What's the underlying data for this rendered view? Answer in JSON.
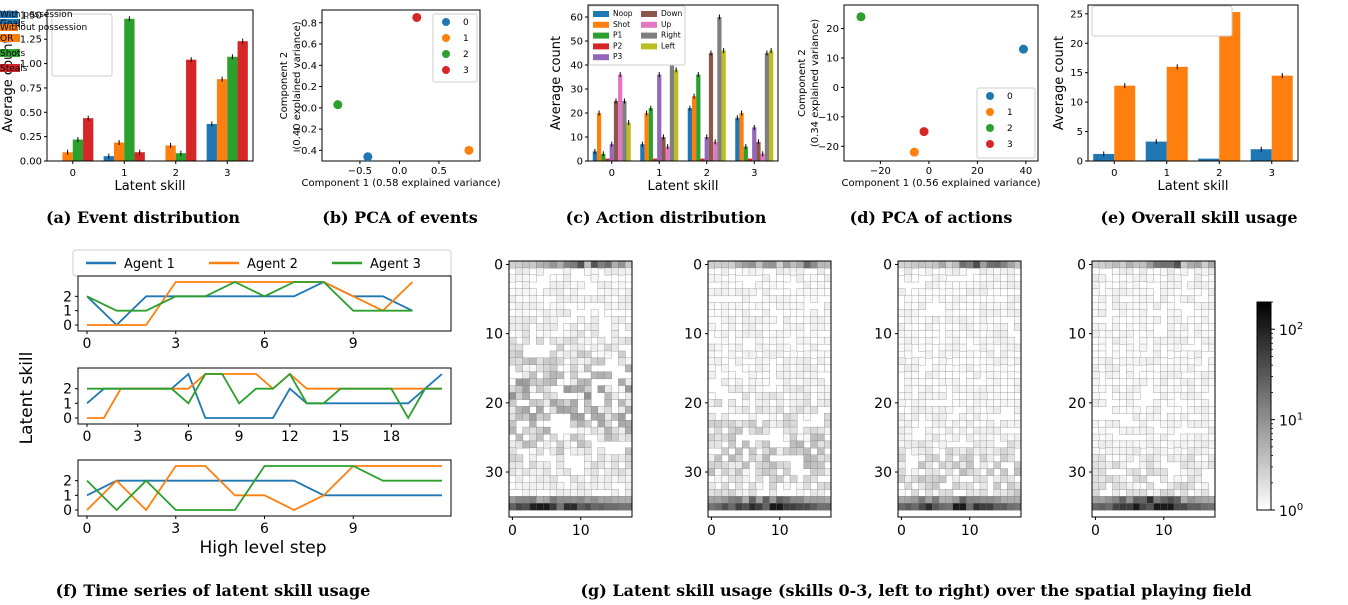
{
  "captions": {
    "a": "(a) Event distribution",
    "b": "(b) PCA of events",
    "c": "(c) Action distribution",
    "d": "(d) PCA of actions",
    "e": "(e) Overall skill usage",
    "f": "(f) Time series of latent skill usage",
    "g": "(g) Latent skill usage (skills 0-3, left to right) over the spatial playing field"
  },
  "colors": {
    "blue": "#1f77b4",
    "orange": "#ff7f0e",
    "green": "#2ca02c",
    "red": "#d62728",
    "purple": "#9467bd",
    "brown": "#8c564b",
    "pink": "#e377c2",
    "gray": "#7f7f7f",
    "olive": "#bcbd22"
  },
  "chart_data": [
    {
      "id": "a",
      "type": "bar",
      "xlabel": "Latent skill",
      "ylabel": "Average count",
      "categories": [
        "0",
        "1",
        "2",
        "3"
      ],
      "yticks": [
        "0.00",
        "0.25",
        "0.50",
        "0.75",
        "1.00",
        "1.25",
        "1.50"
      ],
      "ylim": [
        0,
        1.55
      ],
      "legend": "top-left",
      "series": [
        {
          "name": "Goals",
          "color": "#1f77b4",
          "values": [
            0.0,
            0.05,
            0.0,
            0.38
          ]
        },
        {
          "name": "OR",
          "color": "#ff7f0e",
          "values": [
            0.09,
            0.19,
            0.16,
            0.84
          ]
        },
        {
          "name": "Shots",
          "color": "#2ca02c",
          "values": [
            0.22,
            1.46,
            0.08,
            1.07
          ]
        },
        {
          "name": "Steals",
          "color": "#d62728",
          "values": [
            0.44,
            0.09,
            1.04,
            1.23
          ]
        }
      ]
    },
    {
      "id": "b",
      "type": "scatter",
      "xlabel": "Component 1 (0.58 explained variance)",
      "ylabel": "Component 2",
      "ylabel2": "(0.40 explained variance)",
      "xticks": [
        "−0.5",
        "0.0",
        "0.5"
      ],
      "yticks": [
        "−0.4",
        "−0.2",
        "0.0",
        "0.2",
        "0.4",
        "0.6",
        "0.8"
      ],
      "legend": "top-right",
      "points": [
        {
          "name": "0",
          "color": "#1f77b4",
          "x": -0.4,
          "y": -0.46
        },
        {
          "name": "1",
          "color": "#ff7f0e",
          "x": 0.88,
          "y": -0.4
        },
        {
          "name": "2",
          "color": "#2ca02c",
          "x": -0.78,
          "y": 0.03
        },
        {
          "name": "3",
          "color": "#d62728",
          "x": 0.22,
          "y": 0.85
        }
      ]
    },
    {
      "id": "c",
      "type": "bar",
      "xlabel": "Latent skill",
      "ylabel": "Average count",
      "categories": [
        "0",
        "1",
        "2",
        "3"
      ],
      "yticks": [
        "0",
        "10",
        "20",
        "30",
        "40",
        "50",
        "60"
      ],
      "ylim": [
        0,
        65
      ],
      "legend": "top-left",
      "series": [
        {
          "name": "Noop",
          "color": "#1f77b4",
          "values": [
            4,
            7,
            22,
            18
          ]
        },
        {
          "name": "Shot",
          "color": "#ff7f0e",
          "values": [
            20,
            20,
            27,
            20
          ]
        },
        {
          "name": "P1",
          "color": "#2ca02c",
          "values": [
            3,
            22,
            36,
            6
          ]
        },
        {
          "name": "P2",
          "color": "#d62728",
          "values": [
            1,
            1,
            1,
            1
          ]
        },
        {
          "name": "P3",
          "color": "#9467bd",
          "values": [
            7,
            36,
            10,
            14
          ]
        },
        {
          "name": "Down",
          "color": "#8c564b",
          "values": [
            25,
            10,
            45,
            8
          ]
        },
        {
          "name": "Up",
          "color": "#e377c2",
          "values": [
            36,
            6,
            8,
            3
          ]
        },
        {
          "name": "Right",
          "color": "#7f7f7f",
          "values": [
            25,
            43,
            60,
            45
          ]
        },
        {
          "name": "Left",
          "color": "#bcbd22",
          "values": [
            16,
            38,
            46,
            46
          ]
        }
      ]
    },
    {
      "id": "d",
      "type": "scatter",
      "xlabel": "Component 1 (0.56 explained variance)",
      "ylabel": "Component 2",
      "ylabel2": "(0.34 explained variance)",
      "xticks": [
        "−20",
        "0",
        "20",
        "40"
      ],
      "yticks": [
        "−20",
        "−10",
        "0",
        "10",
        "20"
      ],
      "legend": "bottom-right",
      "points": [
        {
          "name": "0",
          "color": "#1f77b4",
          "x": 39,
          "y": 13
        },
        {
          "name": "1",
          "color": "#ff7f0e",
          "x": -6,
          "y": -22
        },
        {
          "name": "2",
          "color": "#2ca02c",
          "x": -28,
          "y": 24
        },
        {
          "name": "3",
          "color": "#d62728",
          "x": -2,
          "y": -15
        }
      ]
    },
    {
      "id": "e",
      "type": "bar",
      "xlabel": "Latent skill",
      "ylabel": "Average count",
      "categories": [
        "0",
        "1",
        "2",
        "3"
      ],
      "yticks": [
        "0",
        "5",
        "10",
        "15",
        "20",
        "25"
      ],
      "ylim": [
        0,
        26.5
      ],
      "legend": "top-left",
      "series": [
        {
          "name": "With possession",
          "color": "#1f77b4",
          "values": [
            1.2,
            3.3,
            0.4,
            2.0
          ]
        },
        {
          "name": "Without possession",
          "color": "#ff7f0e",
          "values": [
            12.8,
            16.0,
            25.3,
            14.5
          ]
        }
      ]
    },
    {
      "id": "f",
      "type": "line",
      "xlabel": "High level step",
      "ylabel": "Latent skill",
      "legend": "top",
      "series_names": [
        "Agent 1",
        "Agent 2",
        "Agent 3"
      ],
      "series_colors": [
        "#1f77b4",
        "#ff7f0e",
        "#2ca02c"
      ],
      "yticks": [
        "0",
        "1",
        "2"
      ],
      "subplots": [
        {
          "xticks": [
            "0",
            "3",
            "6",
            "9"
          ],
          "xmax": 12,
          "series": [
            [
              2,
              0,
              2,
              2,
              2,
              2,
              2,
              2,
              3,
              2,
              2,
              1
            ],
            [
              0,
              0,
              0,
              3,
              3,
              3,
              3,
              3,
              3,
              2,
              1,
              3
            ],
            [
              2,
              1,
              1,
              2,
              2,
              3,
              2,
              3,
              3,
              1,
              1,
              1
            ]
          ]
        },
        {
          "xticks": [
            "0",
            "3",
            "6",
            "9",
            "12",
            "15",
            "18"
          ],
          "xmax": 21,
          "series": [
            [
              1,
              2,
              2,
              2,
              2,
              2,
              3,
              0,
              0,
              0,
              0,
              0,
              2,
              1,
              1,
              1,
              1,
              1,
              1,
              1,
              2,
              3
            ],
            [
              0,
              0,
              2,
              2,
              2,
              2,
              2,
              3,
              3,
              3,
              3,
              2,
              3,
              2,
              2,
              2,
              2,
              2,
              2,
              2,
              2,
              2
            ],
            [
              2,
              2,
              2,
              2,
              2,
              2,
              1,
              3,
              3,
              1,
              2,
              2,
              3,
              1,
              1,
              2,
              2,
              2,
              2,
              0,
              2,
              2
            ]
          ]
        },
        {
          "xticks": [
            "0",
            "3",
            "6",
            "9"
          ],
          "xmax": 12,
          "series": [
            [
              1,
              2,
              2,
              2,
              2,
              2,
              2,
              2,
              1,
              1,
              1,
              1,
              1
            ],
            [
              0,
              2,
              0,
              3,
              3,
              1,
              1,
              0,
              1,
              3,
              3,
              3,
              3
            ],
            [
              2,
              0,
              2,
              0,
              0,
              0,
              3,
              3,
              3,
              3,
              2,
              2,
              2
            ]
          ]
        }
      ]
    },
    {
      "id": "g",
      "type": "heatmap",
      "panels": [
        "skill 0",
        "skill 1",
        "skill 2",
        "skill 3"
      ],
      "xticks": [
        "0",
        "10"
      ],
      "yticks": [
        "0",
        "10",
        "20",
        "30"
      ],
      "grid": [
        18,
        37
      ],
      "colorbar": {
        "scale": "log",
        "ticks": [
          "10^0",
          "10^1",
          "10^2"
        ],
        "range": [
          1,
          200
        ]
      }
    }
  ]
}
